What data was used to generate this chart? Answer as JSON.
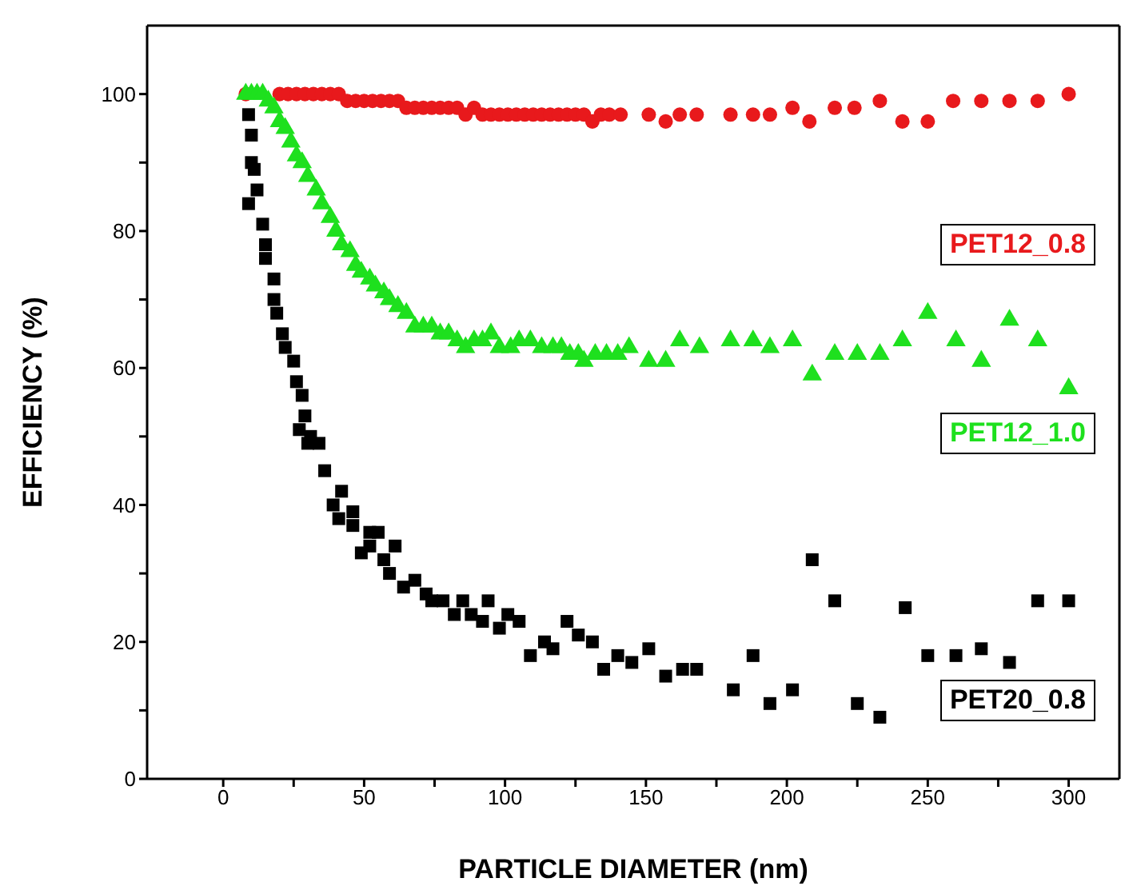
{
  "chart_data": {
    "type": "scatter",
    "xlabel": "PARTICLE DIAMETER (nm)",
    "ylabel": "EFFICIENCY (%)",
    "xlim": [
      -27,
      318
    ],
    "ylim": [
      0,
      110
    ],
    "xticks": [
      0,
      {
        "value": 25,
        "label": null
      },
      50,
      {
        "value": 75,
        "label": null
      },
      100,
      {
        "value": 125,
        "label": null
      },
      150,
      {
        "value": 175,
        "label": null
      },
      200,
      {
        "value": 225,
        "label": null
      },
      250,
      {
        "value": 275,
        "label": null
      },
      300
    ],
    "yticks": [
      0,
      {
        "value": 10,
        "label": null
      },
      20,
      {
        "value": 30,
        "label": null
      },
      40,
      {
        "value": 50,
        "label": null
      },
      60,
      {
        "value": 70,
        "label": null
      },
      80,
      {
        "value": 90,
        "label": null
      },
      100
    ],
    "series": [
      {
        "name": "PET12_0.8",
        "color": "#e8191c",
        "marker": "circle",
        "x": [
          8,
          20,
          23,
          26,
          29,
          32,
          35,
          38,
          41,
          44,
          47,
          50,
          53,
          56,
          59,
          62,
          65,
          68,
          71,
          74,
          77,
          80,
          83,
          86,
          89,
          92,
          95,
          98,
          101,
          104,
          107,
          110,
          113,
          116,
          119,
          122,
          125,
          128,
          131,
          134,
          137,
          141,
          151,
          157,
          162,
          168,
          180,
          188,
          194,
          202,
          208,
          217,
          224,
          233,
          241,
          250,
          259,
          269,
          279,
          289,
          300
        ],
        "values": [
          100,
          100,
          100,
          100,
          100,
          100,
          100,
          100,
          100,
          99,
          99,
          99,
          99,
          99,
          99,
          99,
          98,
          98,
          98,
          98,
          98,
          98,
          98,
          97,
          98,
          97,
          97,
          97,
          97,
          97,
          97,
          97,
          97,
          97,
          97,
          97,
          97,
          97,
          96,
          97,
          97,
          97,
          97,
          96,
          97,
          97,
          97,
          97,
          97,
          98,
          96,
          98,
          98,
          99,
          96,
          96,
          99,
          99,
          99,
          99,
          100
        ]
      },
      {
        "name": "PET12_1.0",
        "color": "#1ee01e",
        "marker": "triangle",
        "x": [
          8,
          10,
          12,
          14,
          16,
          18,
          20,
          22,
          24,
          26,
          28,
          30,
          33,
          35,
          38,
          40,
          42,
          45,
          47,
          49,
          52,
          54,
          57,
          59,
          62,
          65,
          68,
          71,
          74,
          77,
          80,
          83,
          86,
          89,
          92,
          95,
          98,
          102,
          105,
          109,
          113,
          117,
          120,
          123,
          126,
          128,
          132,
          136,
          140,
          144,
          151,
          157,
          162,
          169,
          180,
          188,
          194,
          202,
          209,
          217,
          225,
          233,
          241,
          250,
          260,
          269,
          279,
          289,
          300
        ],
        "values": [
          100,
          100,
          100,
          100,
          99,
          98,
          96,
          95,
          93,
          91,
          90,
          88,
          86,
          84,
          82,
          80,
          78,
          77,
          75,
          74,
          73,
          72,
          71,
          70,
          69,
          68,
          66,
          66,
          66,
          65,
          65,
          64,
          63,
          64,
          64,
          65,
          63,
          63,
          64,
          64,
          63,
          63,
          63,
          62,
          62,
          61,
          62,
          62,
          62,
          63,
          61,
          61,
          64,
          63,
          64,
          64,
          63,
          64,
          59,
          62,
          62,
          62,
          64,
          68,
          64,
          61,
          67,
          64,
          57
        ]
      },
      {
        "name": "PET20_0.8",
        "color": "#000000",
        "marker": "square",
        "x": [
          9,
          10,
          10,
          11,
          9,
          12,
          14,
          15,
          15,
          18,
          18,
          19,
          21,
          22,
          25,
          26,
          27,
          28,
          30,
          29,
          31,
          34,
          36,
          39,
          41,
          42,
          46,
          46,
          49,
          52,
          52,
          55,
          57,
          59,
          61,
          64,
          68,
          72,
          74,
          78,
          82,
          85,
          88,
          92,
          94,
          98,
          101,
          105,
          109,
          114,
          117,
          122,
          126,
          131,
          135,
          140,
          145,
          151,
          157,
          163,
          168,
          181,
          188,
          194,
          202,
          209,
          217,
          225,
          233,
          242,
          250,
          260,
          269,
          279,
          289,
          300
        ],
        "values": [
          97,
          94,
          90,
          89,
          84,
          86,
          81,
          78,
          76,
          73,
          70,
          68,
          65,
          63,
          61,
          58,
          51,
          56,
          49,
          53,
          50,
          49,
          45,
          40,
          38,
          42,
          39,
          37,
          33,
          34,
          36,
          36,
          32,
          30,
          34,
          28,
          29,
          27,
          26,
          26,
          24,
          26,
          24,
          23,
          26,
          22,
          24,
          23,
          18,
          20,
          19,
          23,
          21,
          20,
          16,
          18,
          17,
          19,
          15,
          16,
          16,
          13,
          18,
          11,
          13,
          32,
          26,
          11,
          9,
          25,
          18,
          18,
          19,
          17,
          26,
          26
        ]
      }
    ]
  }
}
